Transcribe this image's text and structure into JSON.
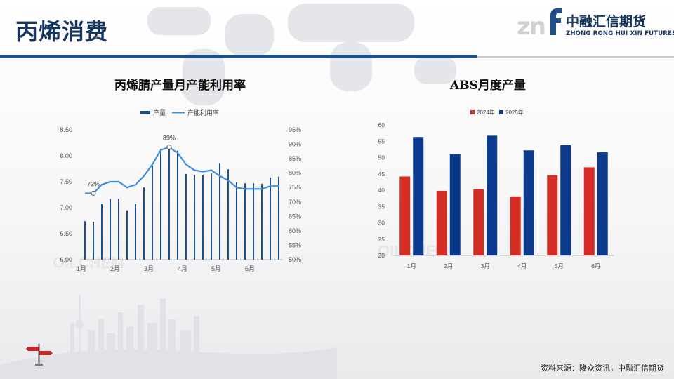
{
  "slide": {
    "title": "丙烯消费",
    "logo_mark": "zn",
    "logo_cn": "中融汇信期货",
    "logo_en": "ZHONG RONG HUI XIN FUTURES",
    "source": "资料来源：隆众资讯，中融汇信期货",
    "watermark": "OILCHEM",
    "colors": {
      "brand_blue": "#1f4e89",
      "title": "#17375e"
    }
  },
  "chart_data": [
    {
      "type": "bar",
      "title": "丙烯腈产量月产能利用率",
      "legend": [
        "产量",
        "产能利用率"
      ],
      "legend_position": "top",
      "x_tick_labels": [
        "1月",
        "2月",
        "3月",
        "4月",
        "5月",
        "6月"
      ],
      "y_left_ticks": [
        "6.00",
        "6.50",
        "7.00",
        "7.50",
        "8.00",
        "8.50"
      ],
      "y_left_range": [
        6.0,
        8.5
      ],
      "y_right_ticks": [
        "50%",
        "55%",
        "60%",
        "65%",
        "70%",
        "75%",
        "80%",
        "85%",
        "90%",
        "95%"
      ],
      "y_right_range": [
        50,
        95
      ],
      "series": [
        {
          "name": "产量",
          "type": "bar",
          "axis": "left",
          "color": "#1f4e89",
          "values": [
            6.74,
            6.73,
            7.07,
            7.17,
            7.17,
            6.95,
            7.07,
            7.39,
            7.81,
            8.13,
            8.15,
            8.1,
            7.65,
            7.63,
            7.63,
            7.66,
            7.86,
            7.74,
            7.49,
            7.47,
            7.47,
            7.46,
            7.58,
            7.6
          ]
        },
        {
          "name": "产能利用率",
          "type": "line",
          "axis": "right",
          "color": "#3f8fe0",
          "values": [
            73,
            73,
            76,
            77,
            77,
            75,
            76,
            79,
            83,
            88,
            89,
            87,
            83,
            81,
            80.5,
            81,
            79,
            77.5,
            75,
            74.5,
            74.5,
            74.5,
            75.5,
            75.5
          ]
        }
      ],
      "annotations": [
        {
          "point": 1,
          "series": "产能利用率",
          "label": "73%"
        },
        {
          "point": 10,
          "series": "产能利用率",
          "label": "89%"
        }
      ],
      "grid": false
    },
    {
      "type": "bar",
      "title": "ABS月度产量",
      "legend": [
        "2024年",
        "2025年"
      ],
      "legend_position": "top",
      "categories": [
        "1月",
        "2月",
        "3月",
        "4月",
        "5月",
        "6月"
      ],
      "y_ticks": [
        "20",
        "25",
        "30",
        "35",
        "40",
        "45",
        "50",
        "55",
        "60"
      ],
      "ylim": [
        20,
        60
      ],
      "series": [
        {
          "name": "2024年",
          "color": "#d42d26",
          "values": [
            44.2,
            39.8,
            40.3,
            38.1,
            44.6,
            47.0
          ]
        },
        {
          "name": "2025年",
          "color": "#0b3a8c",
          "values": [
            56.3,
            51.0,
            56.7,
            52.2,
            53.8,
            51.6
          ]
        }
      ],
      "grid": false
    }
  ]
}
